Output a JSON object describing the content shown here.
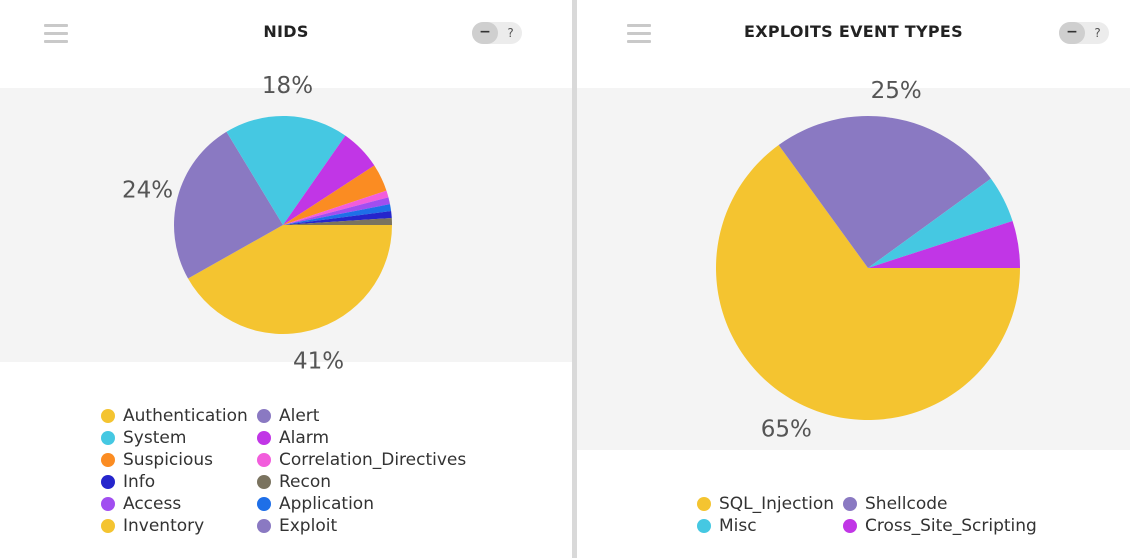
{
  "chart_data": [
    {
      "type": "pie",
      "title": "NIDS",
      "slices": [
        {
          "name": "Authentication",
          "value": 41,
          "color": "#f4c430",
          "label": "41%"
        },
        {
          "name": "Exploit",
          "value": 24,
          "color": "#8a79c2",
          "label": "24%"
        },
        {
          "name": "System",
          "value": 18,
          "color": "#45c8e2",
          "label": "18%"
        },
        {
          "name": "Alarm",
          "value": 6,
          "color": "#c136e6",
          "label": ""
        },
        {
          "name": "Suspicious",
          "value": 4,
          "color": "#fb8c22",
          "label": ""
        },
        {
          "name": "Correlation_Directives",
          "value": 1,
          "color": "#f25ddc",
          "label": ""
        },
        {
          "name": "Access",
          "value": 1,
          "color": "#a14ef0",
          "label": ""
        },
        {
          "name": "Application",
          "value": 1,
          "color": "#1e6fe8",
          "label": ""
        },
        {
          "name": "Info",
          "value": 1,
          "color": "#2525cc",
          "label": ""
        },
        {
          "name": "Recon",
          "value": 1,
          "color": "#7a735f",
          "label": ""
        }
      ],
      "legend": [
        {
          "name": "Authentication",
          "color": "#f4c430"
        },
        {
          "name": "Alert",
          "color": "#8a79c2"
        },
        {
          "name": "System",
          "color": "#45c8e2"
        },
        {
          "name": "Alarm",
          "color": "#c136e6"
        },
        {
          "name": "Suspicious",
          "color": "#fb8c22"
        },
        {
          "name": "Correlation_Directives",
          "color": "#f25ddc"
        },
        {
          "name": "Info",
          "color": "#2525cc"
        },
        {
          "name": "Recon",
          "color": "#7a735f"
        },
        {
          "name": "Access",
          "color": "#a14ef0"
        },
        {
          "name": "Application",
          "color": "#1e6fe8"
        },
        {
          "name": "Inventory",
          "color": "#f4c430"
        },
        {
          "name": "Exploit",
          "color": "#8a79c2"
        }
      ],
      "legend_placement": "bottom"
    },
    {
      "type": "pie",
      "title": "EXPLOITS EVENT TYPES",
      "slices": [
        {
          "name": "SQL_Injection",
          "value": 65,
          "color": "#f4c430",
          "label": "65%"
        },
        {
          "name": "Shellcode",
          "value": 25,
          "color": "#8a79c2",
          "label": "25%"
        },
        {
          "name": "Misc",
          "value": 5,
          "color": "#45c8e2",
          "label": ""
        },
        {
          "name": "Cross_Site_Scripting",
          "value": 5,
          "color": "#c136e6",
          "label": ""
        }
      ],
      "legend": [
        {
          "name": "SQL_Injection",
          "color": "#f4c430"
        },
        {
          "name": "Shellcode",
          "color": "#8a79c2"
        },
        {
          "name": "Misc",
          "color": "#45c8e2"
        },
        {
          "name": "Cross_Site_Scripting",
          "color": "#c136e6"
        }
      ],
      "legend_placement": "bottom"
    }
  ],
  "panels": [
    {
      "title": "NIDS",
      "minimize_label": "−",
      "help_label": "?",
      "menu_icon": "hamburger-menu-icon"
    },
    {
      "title": "EXPLOITS EVENT TYPES",
      "minimize_label": "−",
      "help_label": "?",
      "menu_icon": "hamburger-menu-icon"
    }
  ]
}
